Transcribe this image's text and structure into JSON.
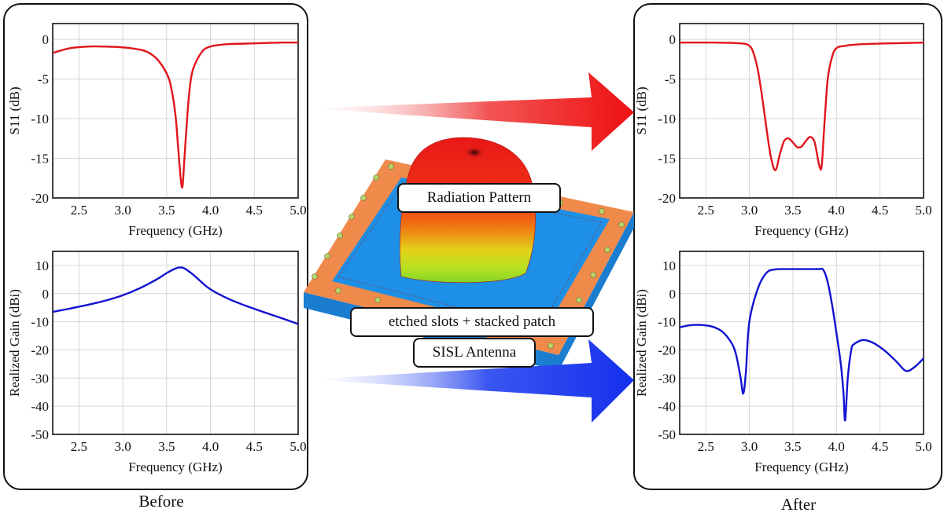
{
  "captions": {
    "before": "Before",
    "after": "After"
  },
  "center_labels": {
    "radiation": "Radiation Pattern",
    "slots": "etched slots + stacked patch",
    "antenna": "SISL Antenna"
  },
  "colors": {
    "s11": "#e0151b",
    "gain": "#1212d0",
    "arrow_red": "#ee1111",
    "arrow_blue": "#1530ee",
    "substrate_orange": "#f08a4b",
    "substrate_blue": "#1e8fe6"
  },
  "chart_data": [
    {
      "id": "before-s11",
      "type": "line",
      "xlabel": "Frequency (GHz)",
      "ylabel": "S11 (dB)",
      "xlim": [
        2.2,
        5.0
      ],
      "ylim": [
        -20,
        2
      ],
      "xticks": [
        "2.5",
        "3.0",
        "3.5",
        "4.0",
        "4.5",
        "5.0"
      ],
      "xtick_values": [
        2.5,
        3.0,
        3.5,
        4.0,
        4.5,
        5.0
      ],
      "yticks": [
        "0",
        "-5",
        "-10",
        "-15",
        "-20"
      ],
      "ytick_values": [
        0,
        -5,
        -10,
        -15,
        -20
      ],
      "grid": true,
      "color": "#e0151b",
      "series": [
        {
          "x": [
            2.2,
            2.4,
            2.6,
            2.8,
            3.0,
            3.2,
            3.3,
            3.4,
            3.5,
            3.55,
            3.6,
            3.63,
            3.66,
            3.68,
            3.7,
            3.73,
            3.76,
            3.8,
            3.9,
            4.0,
            4.2,
            4.5,
            4.8,
            5.0
          ],
          "y": [
            -1.7,
            -1.1,
            -0.9,
            -0.9,
            -1.0,
            -1.3,
            -1.7,
            -2.6,
            -4.3,
            -6.0,
            -9.5,
            -13.5,
            -17.5,
            -18.6,
            -15.5,
            -10.5,
            -6.5,
            -3.8,
            -1.6,
            -0.9,
            -0.6,
            -0.5,
            -0.4,
            -0.4
          ]
        }
      ]
    },
    {
      "id": "before-gain",
      "type": "line",
      "xlabel": "Frequency (GHz)",
      "ylabel": "Realized Gain (dBi)",
      "xlim": [
        2.2,
        5.0
      ],
      "ylim": [
        -50,
        15
      ],
      "xticks": [
        "2.5",
        "3.0",
        "3.5",
        "4.0",
        "4.5",
        "5.0"
      ],
      "xtick_values": [
        2.5,
        3.0,
        3.5,
        4.0,
        4.5,
        5.0
      ],
      "yticks": [
        "10",
        "0",
        "-10",
        "-20",
        "-30",
        "-40",
        "-50"
      ],
      "ytick_values": [
        10,
        0,
        -10,
        -20,
        -30,
        -40,
        -50
      ],
      "grid": true,
      "color": "#1212d0",
      "series": [
        {
          "x": [
            2.2,
            2.4,
            2.6,
            2.8,
            3.0,
            3.2,
            3.4,
            3.5,
            3.6,
            3.65,
            3.7,
            3.8,
            3.9,
            4.0,
            4.2,
            4.4,
            4.6,
            4.8,
            5.0
          ],
          "y": [
            -6.5,
            -5.3,
            -4.0,
            -2.5,
            -0.6,
            2.0,
            5.3,
            7.3,
            8.9,
            9.3,
            9.0,
            6.8,
            4.0,
            1.5,
            -1.8,
            -4.3,
            -6.5,
            -8.6,
            -10.8
          ]
        }
      ]
    },
    {
      "id": "after-s11",
      "type": "line",
      "xlabel": "Frequency (GHz)",
      "ylabel": "S11 (dB)",
      "xlim": [
        2.2,
        5.0
      ],
      "ylim": [
        -20,
        2
      ],
      "xticks": [
        "2.5",
        "3.0",
        "3.5",
        "4.0",
        "4.5",
        "5.0"
      ],
      "xtick_values": [
        2.5,
        3.0,
        3.5,
        4.0,
        4.5,
        5.0
      ],
      "yticks": [
        "0",
        "-5",
        "-10",
        "-15",
        "-20"
      ],
      "ytick_values": [
        0,
        -5,
        -10,
        -15,
        -20
      ],
      "grid": true,
      "color": "#e0151b",
      "series": [
        {
          "x": [
            2.2,
            2.6,
            2.9,
            3.0,
            3.05,
            3.1,
            3.15,
            3.2,
            3.25,
            3.3,
            3.35,
            3.4,
            3.45,
            3.5,
            3.55,
            3.6,
            3.65,
            3.7,
            3.75,
            3.8,
            3.83,
            3.86,
            3.9,
            3.95,
            4.0,
            4.1,
            4.3,
            4.6,
            5.0
          ],
          "y": [
            -0.4,
            -0.4,
            -0.5,
            -0.8,
            -1.8,
            -4.0,
            -7.5,
            -11.5,
            -15.0,
            -16.5,
            -14.5,
            -12.8,
            -12.5,
            -13.0,
            -13.6,
            -13.5,
            -12.8,
            -12.3,
            -13.0,
            -15.8,
            -16.0,
            -11.0,
            -5.0,
            -2.2,
            -1.1,
            -0.8,
            -0.6,
            -0.5,
            -0.4
          ]
        }
      ]
    },
    {
      "id": "after-gain",
      "type": "line",
      "xlabel": "Frequency (GHz)",
      "ylabel": "Realized Gain (dBi)",
      "xlim": [
        2.2,
        5.0
      ],
      "ylim": [
        -50,
        15
      ],
      "xticks": [
        "2.5",
        "3.0",
        "3.5",
        "4.0",
        "4.5",
        "5.0"
      ],
      "xtick_values": [
        2.5,
        3.0,
        3.5,
        4.0,
        4.5,
        5.0
      ],
      "yticks": [
        "10",
        "0",
        "-10",
        "-20",
        "-30",
        "-40",
        "-50"
      ],
      "ytick_values": [
        10,
        0,
        -10,
        -20,
        -30,
        -40,
        -50
      ],
      "grid": true,
      "color": "#1212d0",
      "series": [
        {
          "x": [
            2.2,
            2.3,
            2.4,
            2.5,
            2.6,
            2.7,
            2.8,
            2.85,
            2.9,
            2.93,
            2.96,
            3.0,
            3.1,
            3.2,
            3.3,
            3.4,
            3.5,
            3.6,
            3.7,
            3.8,
            3.85,
            3.9,
            3.95,
            4.0,
            4.05,
            4.08,
            4.1,
            4.13,
            4.17,
            4.2,
            4.3,
            4.4,
            4.5,
            4.6,
            4.7,
            4.8,
            4.9,
            5.0
          ],
          "y": [
            -12.0,
            -11.3,
            -11.1,
            -11.3,
            -12.0,
            -13.8,
            -17.8,
            -22.0,
            -30.0,
            -35.5,
            -28.0,
            -10.0,
            2.0,
            7.5,
            8.6,
            8.7,
            8.7,
            8.7,
            8.7,
            8.7,
            8.4,
            4.0,
            -4.0,
            -14.0,
            -25.0,
            -35.0,
            -45.0,
            -30.0,
            -20.0,
            -18.0,
            -16.5,
            -17.2,
            -19.0,
            -21.5,
            -24.5,
            -27.5,
            -26.0,
            -23.0
          ]
        }
      ]
    }
  ]
}
